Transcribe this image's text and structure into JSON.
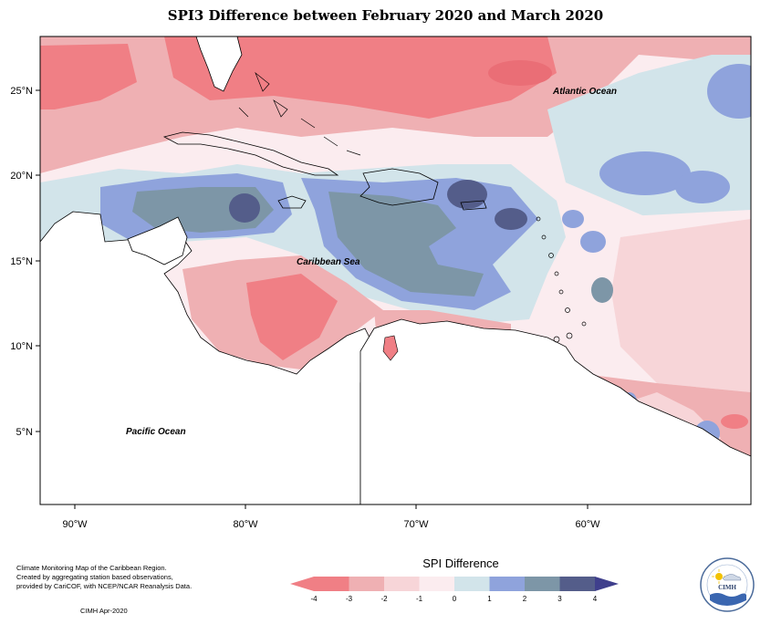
{
  "title": "SPI3 Difference between February 2020 and March 2020",
  "map": {
    "lat_labels": [
      "25°N",
      "20°N",
      "15°N",
      "10°N",
      "5°N"
    ],
    "lon_labels": [
      "90°W",
      "80°W",
      "70°W",
      "60°W"
    ],
    "places": {
      "atlantic": "Atlantic Ocean",
      "caribbean": "Caribbean Sea",
      "pacific": "Pacific Ocean"
    }
  },
  "legend": {
    "title": "SPI Difference",
    "ticks": [
      "-4",
      "-3",
      "-2",
      "-1",
      "0",
      "1",
      "2",
      "3",
      "4"
    ],
    "colors": [
      "#f07f85",
      "#efb0b3",
      "#f7d5d8",
      "#fbecef",
      "#d2e4ea",
      "#8fa3dc",
      "#7d96a7",
      "#545d8a"
    ],
    "arrow_left_color": "#f07f85",
    "arrow_right_color": "#3f3f8c"
  },
  "credits": [
    "Climate Monitoring Map of the Caribbean Region.",
    "Created by aggregating station based observations,",
    "provided by CariCOF, with NCEP/NCAR Reanalysis Data."
  ],
  "date_stamp": "CIMH Apr-2020",
  "logo_text": "CIMH"
}
